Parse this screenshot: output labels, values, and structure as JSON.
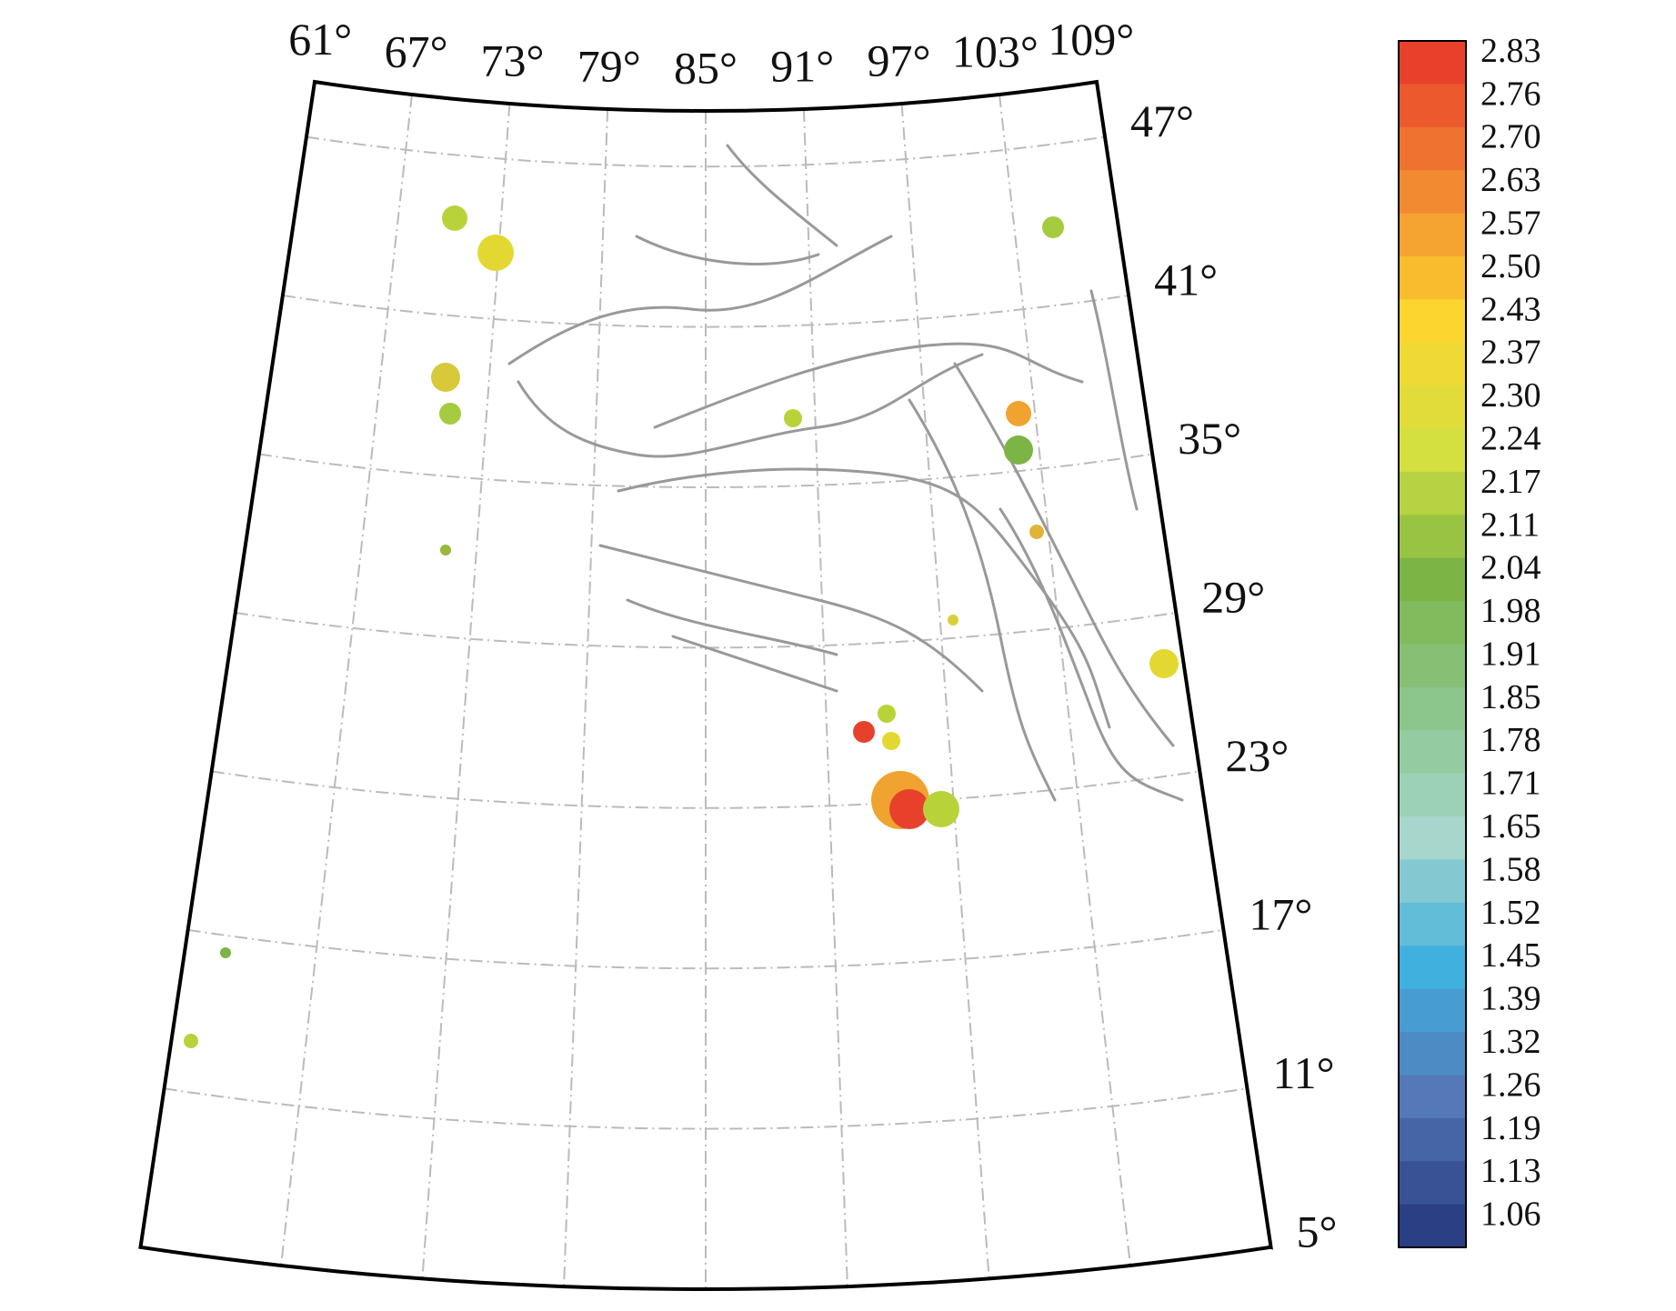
{
  "map": {
    "longitude_labels": [
      "61°",
      "67°",
      "73°",
      "79°",
      "85°",
      "91°",
      "97°",
      "103°",
      "109°"
    ],
    "latitude_labels": [
      "47°",
      "41°",
      "35°",
      "29°",
      "23°",
      "17°",
      "11°",
      "5°"
    ]
  },
  "colorbar": {
    "labels": [
      "2.83",
      "2.76",
      "2.70",
      "2.63",
      "2.57",
      "2.50",
      "2.43",
      "2.37",
      "2.30",
      "2.24",
      "2.17",
      "2.11",
      "2.04",
      "1.98",
      "1.91",
      "1.85",
      "1.78",
      "1.71",
      "1.65",
      "1.58",
      "1.52",
      "1.45",
      "1.39",
      "1.32",
      "1.26",
      "1.19",
      "1.13",
      "1.06"
    ]
  }
}
